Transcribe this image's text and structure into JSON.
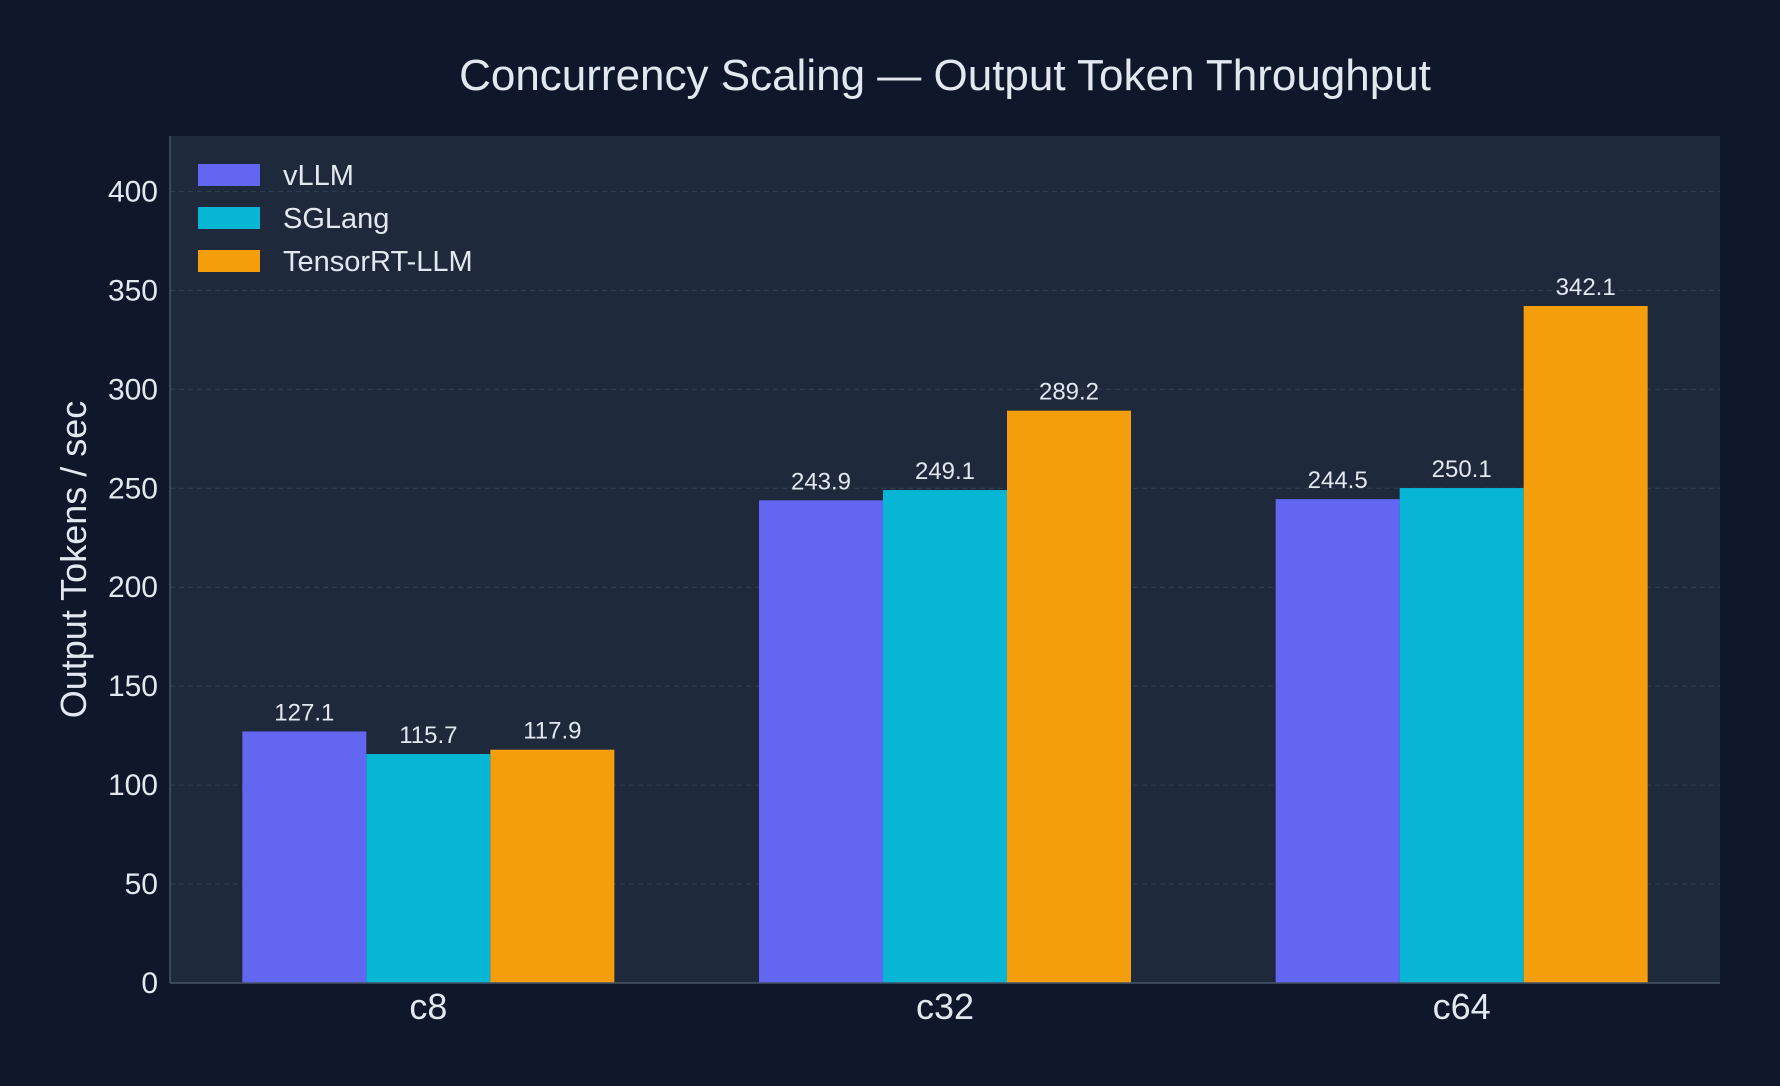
{
  "chart_data": {
    "type": "bar",
    "title": "Concurrency Scaling — Output Token Throughput",
    "xlabel": "",
    "ylabel": "Output Tokens / sec",
    "categories": [
      "c8",
      "c32",
      "c64"
    ],
    "series": [
      {
        "name": "vLLM",
        "color": "#6366f1",
        "values": [
          127.1,
          243.9,
          244.5
        ]
      },
      {
        "name": "SGLang",
        "color": "#06b6d4",
        "values": [
          115.7,
          249.1,
          250.1
        ]
      },
      {
        "name": "TensorRT-LLM",
        "color": "#f59e0b",
        "values": [
          117.9,
          289.2,
          342.1
        ]
      }
    ],
    "ylim": [
      0,
      428
    ],
    "yticks": [
      0,
      50,
      100,
      150,
      200,
      250,
      300,
      350,
      400
    ],
    "grid": true,
    "legend_position": "top-left",
    "colors": {
      "page_background": "#0f172a",
      "plot_background": "#1e293b",
      "text": "#e2e8f0",
      "grid": "#334155",
      "axis": "#475569"
    }
  }
}
